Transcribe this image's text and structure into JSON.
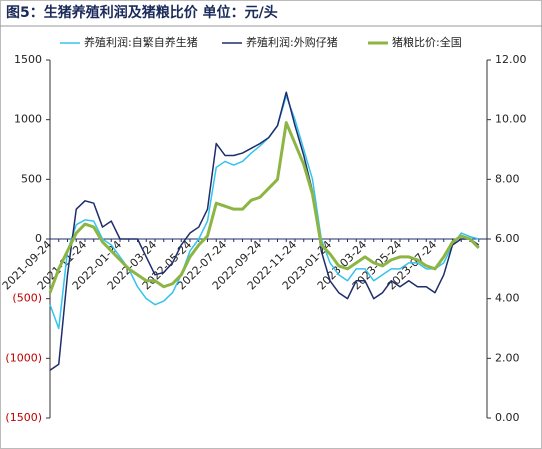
{
  "chart_data": {
    "type": "line",
    "title": "图5：生猪养殖利润及猪粮比价 单位：元/头",
    "categories": [
      "2021-09-24",
      null,
      null,
      null,
      "2021-11-24",
      null,
      null,
      null,
      "2022-01-24",
      null,
      null,
      null,
      "2022-03-24",
      null,
      null,
      null,
      "2022-05-24",
      null,
      null,
      null,
      "2022-07-24",
      null,
      null,
      null,
      "2022-09-24",
      null,
      null,
      null,
      "2022-11-24",
      null,
      null,
      null,
      "2023-01-24",
      null,
      null,
      null,
      "2023-03-24",
      null,
      null,
      null,
      "2023-05-24",
      null,
      null,
      null,
      "2023-07-24",
      null,
      null,
      null,
      null,
      null
    ],
    "series": [
      {
        "name": "养殖利润:自繁自养生猪",
        "color": "#33c3f0",
        "width": 1.5,
        "values": [
          -550,
          -750,
          -100,
          120,
          160,
          150,
          0,
          -50,
          -150,
          -250,
          -400,
          -500,
          -550,
          -520,
          -450,
          -300,
          -100,
          0,
          150,
          600,
          650,
          620,
          650,
          720,
          780,
          850,
          950,
          1200,
          1000,
          750,
          500,
          0,
          -200,
          -300,
          -350,
          -250,
          -250,
          -350,
          -300,
          -250,
          -250,
          -200,
          -200,
          -250,
          -250,
          -200,
          -50,
          50,
          20,
          0
        ]
      },
      {
        "name": "养殖利润:外购仔猪",
        "color": "#1f2d6b",
        "width": 1.5,
        "values": [
          -1100,
          -1050,
          -300,
          250,
          320,
          300,
          100,
          150,
          0,
          0,
          0,
          -150,
          -300,
          -280,
          -200,
          -50,
          50,
          100,
          250,
          800,
          700,
          700,
          720,
          760,
          800,
          850,
          950,
          1230,
          950,
          700,
          400,
          -100,
          -350,
          -450,
          -500,
          -350,
          -350,
          -500,
          -450,
          -350,
          -400,
          -350,
          -400,
          -400,
          -450,
          -300,
          -50,
          0,
          0,
          -50
        ]
      },
      {
        "name": "猪粮比价:全国",
        "color": "#8db543",
        "width": 3,
        "axis": "y2",
        "values": [
          4.2,
          5.0,
          5.6,
          6.2,
          6.5,
          6.4,
          5.9,
          5.6,
          5.3,
          5.0,
          4.8,
          4.6,
          4.6,
          4.4,
          4.5,
          4.8,
          5.4,
          5.8,
          6.1,
          7.2,
          7.1,
          7.0,
          7.0,
          7.3,
          7.4,
          7.7,
          8.0,
          9.9,
          9.2,
          8.5,
          7.5,
          5.8,
          5.5,
          5.1,
          5.0,
          5.2,
          5.4,
          5.2,
          5.1,
          5.3,
          5.4,
          5.4,
          5.3,
          5.1,
          5.0,
          5.4,
          5.9,
          6.1,
          6.0,
          5.7
        ]
      }
    ],
    "ylim": [
      -1500,
      1500
    ],
    "yticks": [
      1500,
      1000,
      500,
      0,
      {
        "value": -500,
        "label": "(500)"
      },
      {
        "value": -1000,
        "label": "(1000)"
      },
      {
        "value": -1500,
        "label": "(1500)"
      }
    ],
    "negative_tick_color": "#c00000",
    "y2lim": [
      0,
      12
    ],
    "y2ticks": [
      {
        "value": 12,
        "label": "12.00"
      },
      {
        "value": 10,
        "label": "10.00"
      },
      {
        "value": 8,
        "label": "8.00"
      },
      {
        "value": 6,
        "label": "6.00"
      },
      {
        "value": 4,
        "label": "4.00"
      },
      {
        "value": 2,
        "label": "2.00"
      },
      {
        "value": 0,
        "label": "0.00"
      }
    ],
    "legend": "top",
    "grid": false
  }
}
